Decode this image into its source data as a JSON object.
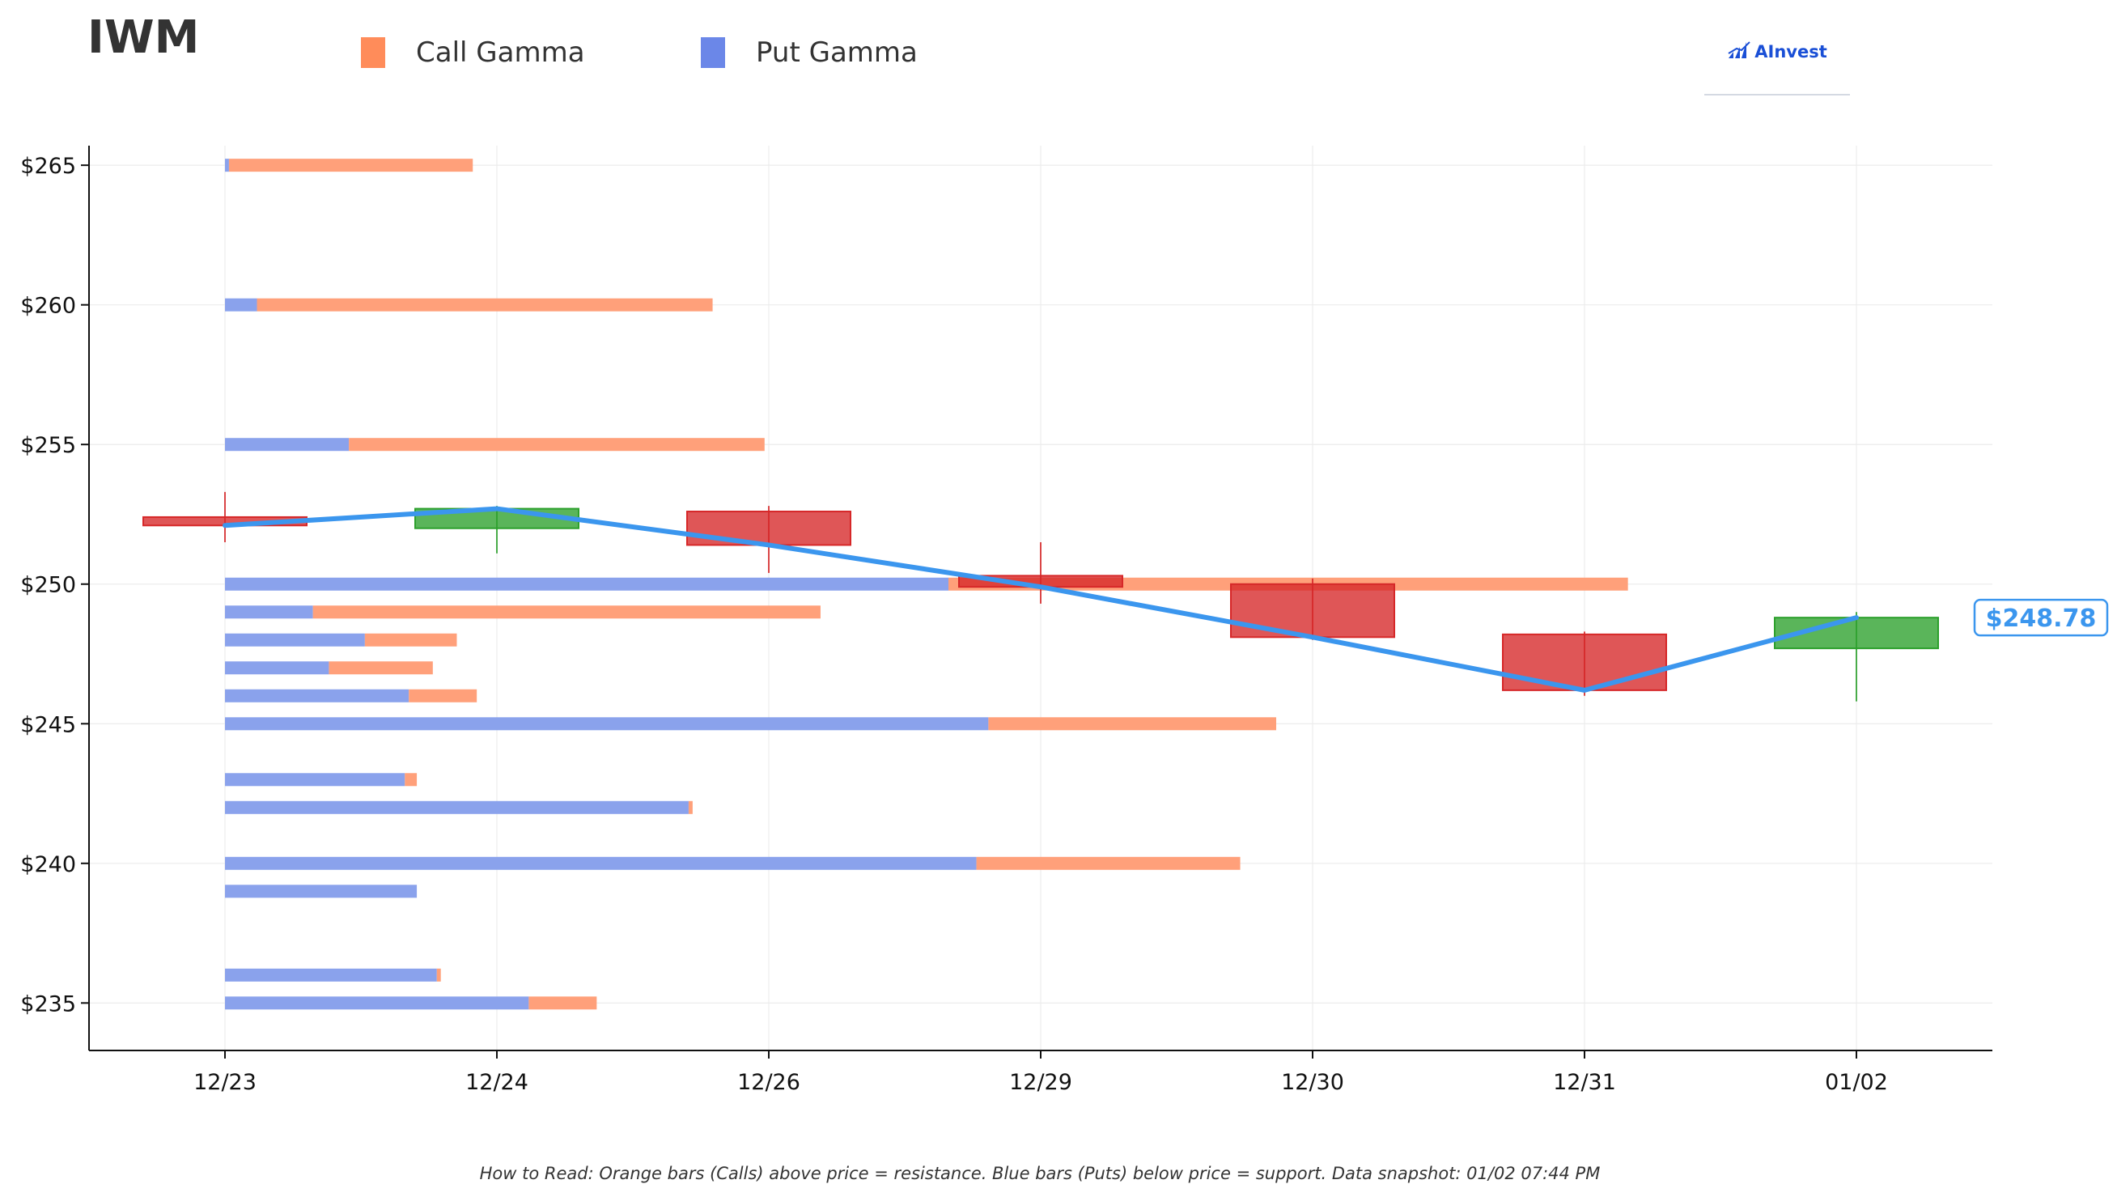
{
  "header": {
    "ticker": "IWM",
    "brand": "AInvest"
  },
  "legend": {
    "call": {
      "label": "Call Gamma",
      "color": "#ff8c5a"
    },
    "put": {
      "label": "Put Gamma",
      "color": "#6b87e8"
    }
  },
  "footnote": "How to Read: Orange bars (Calls) above price = resistance. Blue bars (Puts) below price = support. Data snapshot: 01/02 07:44 PM",
  "colors": {
    "up": "#2ca02c",
    "down": "#d62728",
    "price_line": "#3b96ee",
    "call_bar": "#ffa07a",
    "put_bar": "#8aa2ec"
  },
  "chart_data": {
    "type": "candlestick-with-gamma-bars",
    "x_categories": [
      "12/23",
      "12/24",
      "12/26",
      "12/29",
      "12/30",
      "12/31",
      "01/02"
    ],
    "y_ticks": [
      235,
      240,
      245,
      250,
      255,
      260,
      265
    ],
    "y_tick_format": "$",
    "ylim": [
      233.3,
      265.7
    ],
    "grid": true,
    "legend_placement": "top-left",
    "candles": [
      {
        "date": "12/23",
        "open": 252.4,
        "high": 253.3,
        "low": 251.5,
        "close": 252.1
      },
      {
        "date": "12/24",
        "open": 252.0,
        "high": 252.8,
        "low": 251.1,
        "close": 252.7
      },
      {
        "date": "12/26",
        "open": 252.6,
        "high": 252.8,
        "low": 250.4,
        "close": 251.4
      },
      {
        "date": "12/29",
        "open": 250.3,
        "high": 251.5,
        "low": 249.3,
        "close": 249.9
      },
      {
        "date": "12/30",
        "open": 250.0,
        "high": 250.2,
        "low": 248.0,
        "close": 248.1
      },
      {
        "date": "12/31",
        "open": 248.2,
        "high": 248.3,
        "low": 246.0,
        "close": 246.2
      },
      {
        "date": "01/02",
        "open": 247.7,
        "high": 249.0,
        "low": 245.8,
        "close": 248.8
      }
    ],
    "price_line": {
      "x": [
        "12/23",
        "12/24",
        "12/26",
        "12/29",
        "12/30",
        "12/31",
        "01/02"
      ],
      "y": [
        252.1,
        252.7,
        251.4,
        249.9,
        248.1,
        246.2,
        248.8
      ]
    },
    "current_price_label": "$248.78",
    "gamma_exposure": {
      "scale_max": 10,
      "strikes": [
        {
          "strike": 265,
          "put": 0.05,
          "call": 3.05
        },
        {
          "strike": 260,
          "put": 0.4,
          "call": 5.7
        },
        {
          "strike": 255,
          "put": 1.55,
          "call": 5.2
        },
        {
          "strike": 250,
          "put": 9.05,
          "call": 8.5
        },
        {
          "strike": 249,
          "put": 1.1,
          "call": 6.35
        },
        {
          "strike": 248,
          "put": 1.75,
          "call": 1.15
        },
        {
          "strike": 247,
          "put": 1.3,
          "call": 1.3
        },
        {
          "strike": 246,
          "put": 2.3,
          "call": 0.85
        },
        {
          "strike": 245,
          "put": 9.55,
          "call": 3.6
        },
        {
          "strike": 243,
          "put": 2.25,
          "call": 0.15
        },
        {
          "strike": 242,
          "put": 5.8,
          "call": 0.05
        },
        {
          "strike": 240,
          "put": 9.4,
          "call": 3.3
        },
        {
          "strike": 239,
          "put": 2.4,
          "call": 0
        },
        {
          "strike": 236,
          "put": 2.65,
          "call": 0.05
        },
        {
          "strike": 235,
          "put": 3.8,
          "call": 0.85
        }
      ]
    }
  }
}
